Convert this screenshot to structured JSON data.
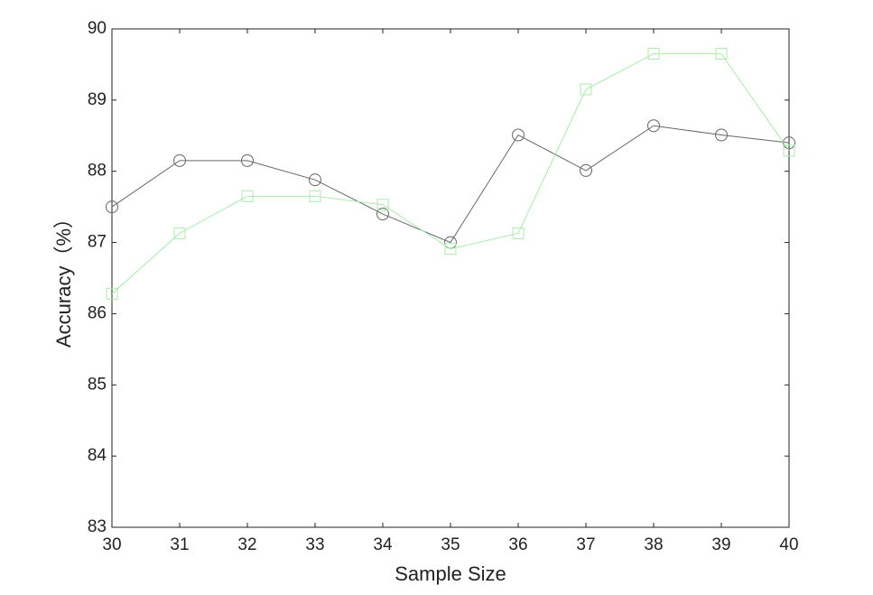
{
  "chart_data": {
    "type": "line",
    "xlabel": "Sample Size",
    "ylabel": "Accuracy（%）",
    "x": [
      30,
      31,
      32,
      33,
      34,
      35,
      36,
      37,
      38,
      39,
      40
    ],
    "series": [
      {
        "color": "#666666",
        "marker": "circle",
        "values": [
          87.5,
          88.15,
          88.15,
          87.88,
          87.4,
          87.0,
          88.51,
          88.01,
          88.64,
          88.51,
          88.4
        ]
      },
      {
        "color": "#a8ecaa",
        "marker": "square",
        "values": [
          86.28,
          87.13,
          87.65,
          87.65,
          87.53,
          86.91,
          87.13,
          89.15,
          89.65,
          89.65,
          88.29
        ]
      }
    ],
    "xlim": [
      30,
      40
    ],
    "xticks": [
      30,
      31,
      32,
      33,
      34,
      35,
      36,
      37,
      38,
      39,
      40
    ],
    "ylim": [
      83,
      90
    ],
    "yticks": [
      83,
      84,
      85,
      86,
      87,
      88,
      89,
      90
    ]
  }
}
